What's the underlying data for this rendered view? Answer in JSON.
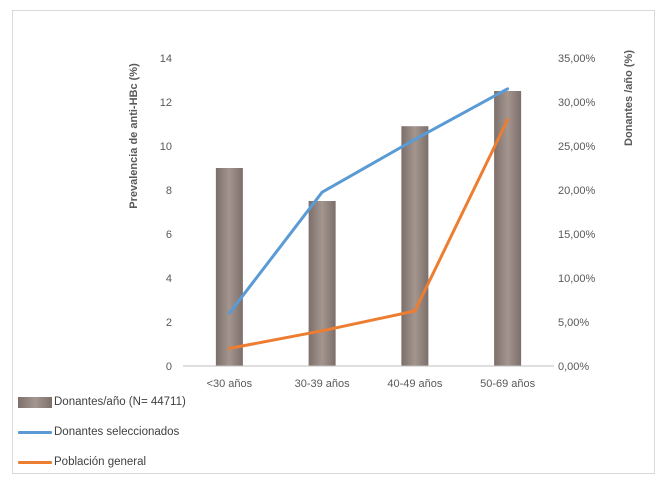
{
  "chart_data": {
    "type": "bar",
    "categories": [
      "<30 años",
      "30-39 años",
      "40-49 años",
      "50-69 años"
    ],
    "left_axis": {
      "label": "Prevalencia de anti-HBc (%)",
      "ticks": [
        "0",
        "2",
        "4",
        "6",
        "8",
        "10",
        "12",
        "14"
      ],
      "ylim": [
        0,
        14
      ]
    },
    "right_axis": {
      "label": "Donantes /año (%)",
      "ticks": [
        "0,00%",
        "5,00%",
        "10,00%",
        "15,00%",
        "20,00%",
        "25,00%",
        "30,00%",
        "35,00%"
      ],
      "ylim": [
        0,
        35
      ]
    },
    "series": [
      {
        "name": "Donantes/año (N= 44711)",
        "kind": "bar",
        "axis": "left",
        "values": [
          9.0,
          7.5,
          10.9,
          12.5
        ],
        "color": "#8e817c"
      },
      {
        "name": "Donantes seleccionados",
        "kind": "line",
        "axis": "left",
        "values": [
          2.4,
          7.9,
          10.3,
          12.6
        ],
        "color": "#5b9bd5"
      },
      {
        "name": "Población general",
        "kind": "line",
        "axis": "left",
        "values": [
          0.8,
          1.6,
          2.5,
          11.2
        ],
        "color": "#ed7d31"
      }
    ],
    "grid": false,
    "legend_position": "bottom-left"
  }
}
